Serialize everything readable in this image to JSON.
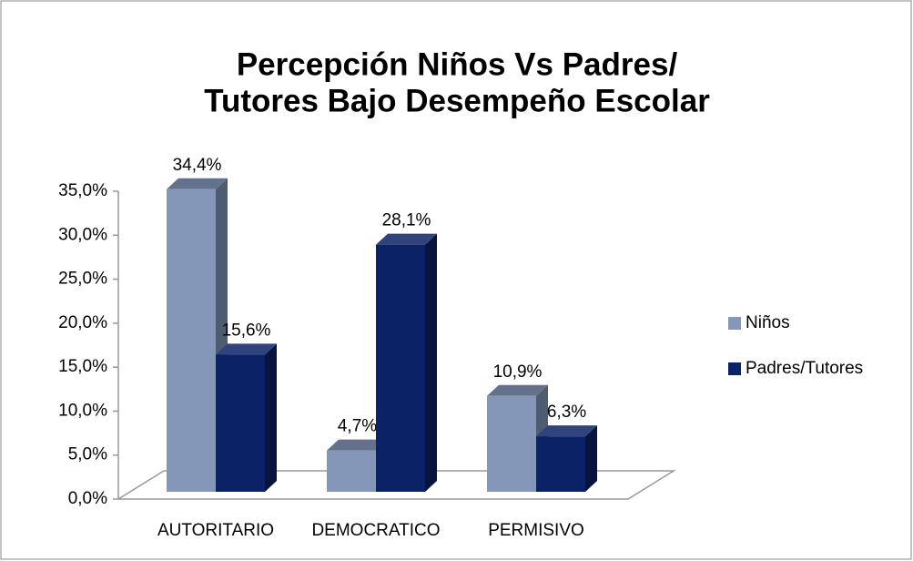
{
  "chart_data": {
    "type": "bar3d",
    "title": [
      "Percepción Niños Vs Padres/",
      "Tutores Bajo Desempeño Escolar"
    ],
    "categories": [
      "AUTORITARIO",
      "DEMOCRATICO",
      "PERMISIVO"
    ],
    "series": [
      {
        "name": "Niños",
        "color": "#8497b8",
        "values": [
          34.4,
          4.7,
          10.9
        ],
        "value_labels": [
          "34,4%",
          "4,7%",
          "10,9%"
        ]
      },
      {
        "name": "Padres/Tutores",
        "color": "#0c2266",
        "values": [
          15.6,
          28.1,
          6.3
        ],
        "value_labels": [
          "15,6%",
          "28,1%",
          "6,3%"
        ]
      }
    ],
    "ylim": [
      0,
      35
    ],
    "yticks": [
      {
        "value": 0,
        "label": "0,0%"
      },
      {
        "value": 5,
        "label": "5,0%"
      },
      {
        "value": 10,
        "label": "10,0%"
      },
      {
        "value": 15,
        "label": "15,0%"
      },
      {
        "value": 20,
        "label": "20,0%"
      },
      {
        "value": 25,
        "label": "25,0%"
      },
      {
        "value": 30,
        "label": "30,0%"
      },
      {
        "value": 35,
        "label": "35,0%"
      }
    ],
    "legend": "right"
  }
}
